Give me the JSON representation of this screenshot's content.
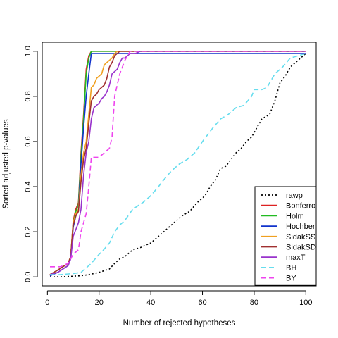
{
  "chart_data": {
    "type": "line",
    "title": "",
    "xlabel": "Number of rejected hypotheses",
    "ylabel": "Sorted adjusted p-values",
    "xlim": [
      -2,
      104
    ],
    "ylim": [
      -0.04,
      1.04
    ],
    "xticks": [
      0,
      20,
      40,
      60,
      80,
      100
    ],
    "yticks": [
      0.0,
      0.2,
      0.4,
      0.6,
      0.8,
      1.0
    ],
    "xtick_labels": [
      "0",
      "20",
      "40",
      "60",
      "80",
      "100"
    ],
    "ytick_labels": [
      "0.0",
      "0.2",
      "0.4",
      "0.6",
      "0.8",
      "1.0"
    ],
    "grid": false,
    "legend_position": "bottom-right",
    "series": [
      {
        "name": "rawp",
        "color": "#000000",
        "dash": "dotted",
        "x": [
          1,
          5,
          10,
          13,
          16,
          20,
          24,
          26,
          28,
          30,
          33,
          36,
          40,
          44,
          48,
          52,
          55,
          58,
          61,
          63,
          65,
          67,
          69,
          71,
          73,
          75,
          77,
          79,
          81,
          83,
          86,
          88,
          90,
          92,
          94,
          97,
          100
        ],
        "y": [
          0.0,
          0.0,
          0.003,
          0.005,
          0.01,
          0.02,
          0.035,
          0.06,
          0.08,
          0.09,
          0.12,
          0.13,
          0.15,
          0.19,
          0.23,
          0.27,
          0.29,
          0.33,
          0.36,
          0.4,
          0.43,
          0.48,
          0.49,
          0.52,
          0.55,
          0.57,
          0.6,
          0.62,
          0.66,
          0.7,
          0.72,
          0.78,
          0.86,
          0.89,
          0.93,
          0.96,
          0.99
        ]
      },
      {
        "name": "Bonferroni",
        "color": "#dd2222",
        "dash": "solid",
        "x": [
          1,
          4,
          8,
          9,
          10,
          11,
          12,
          13,
          14,
          15,
          16,
          17,
          18,
          100
        ],
        "y": [
          0.01,
          0.03,
          0.06,
          0.09,
          0.25,
          0.3,
          0.33,
          0.55,
          0.72,
          0.92,
          0.98,
          1.0,
          1.0,
          1.0
        ]
      },
      {
        "name": "Holm",
        "color": "#22bb22",
        "dash": "solid",
        "x": [
          1,
          4,
          8,
          9,
          10,
          11,
          12,
          13,
          14,
          15,
          16,
          17,
          18,
          100
        ],
        "y": [
          0.01,
          0.03,
          0.06,
          0.09,
          0.24,
          0.29,
          0.32,
          0.53,
          0.7,
          0.9,
          0.97,
          1.0,
          1.0,
          1.0
        ]
      },
      {
        "name": "Hochberg",
        "color": "#1133cc",
        "dash": "solid",
        "x": [
          1,
          4,
          8,
          9,
          10,
          11,
          12,
          13,
          14,
          15,
          16,
          17,
          18,
          100
        ],
        "y": [
          0.005,
          0.02,
          0.05,
          0.08,
          0.22,
          0.27,
          0.3,
          0.5,
          0.66,
          0.8,
          0.9,
          0.99,
          0.99,
          0.99
        ]
      },
      {
        "name": "SidakSS",
        "color": "#f0a020",
        "dash": "solid",
        "x": [
          1,
          4,
          8,
          9,
          10,
          11,
          12,
          13,
          14,
          15,
          16,
          17,
          18,
          19,
          20,
          21,
          22,
          23,
          24,
          25,
          26,
          27,
          28,
          100
        ],
        "y": [
          0.01,
          0.03,
          0.06,
          0.09,
          0.24,
          0.28,
          0.3,
          0.45,
          0.55,
          0.6,
          0.72,
          0.84,
          0.85,
          0.88,
          0.89,
          0.9,
          0.94,
          0.95,
          0.96,
          0.97,
          0.99,
          1.0,
          1.0,
          1.0
        ]
      },
      {
        "name": "SidakSD",
        "color": "#a03030",
        "dash": "solid",
        "x": [
          1,
          4,
          8,
          9,
          10,
          11,
          12,
          13,
          14,
          15,
          16,
          17,
          18,
          19,
          20,
          21,
          22,
          23,
          24,
          25,
          26,
          27,
          28,
          100
        ],
        "y": [
          0.01,
          0.03,
          0.06,
          0.09,
          0.23,
          0.27,
          0.29,
          0.42,
          0.52,
          0.57,
          0.68,
          0.78,
          0.8,
          0.81,
          0.83,
          0.84,
          0.85,
          0.88,
          0.93,
          0.95,
          0.98,
          0.99,
          1.0,
          1.0
        ]
      },
      {
        "name": "maxT",
        "color": "#9933cc",
        "dash": "solid",
        "x": [
          1,
          4,
          8,
          9,
          10,
          11,
          12,
          13,
          14,
          15,
          16,
          17,
          18,
          19,
          20,
          21,
          22,
          23,
          24,
          25,
          26,
          27,
          28,
          29,
          30,
          31,
          32,
          34,
          36,
          100
        ],
        "y": [
          0.01,
          0.02,
          0.05,
          0.08,
          0.18,
          0.21,
          0.24,
          0.3,
          0.45,
          0.55,
          0.6,
          0.7,
          0.75,
          0.76,
          0.77,
          0.79,
          0.8,
          0.82,
          0.85,
          0.9,
          0.91,
          0.92,
          0.95,
          0.97,
          0.97,
          0.98,
          0.99,
          0.99,
          1.0,
          1.0
        ]
      },
      {
        "name": "BH",
        "color": "#66ddee",
        "dash": "dashed",
        "x": [
          1,
          5,
          10,
          13,
          16,
          17,
          20,
          21,
          24,
          26,
          28,
          30,
          33,
          37,
          40,
          43,
          45,
          48,
          51,
          54,
          57,
          60,
          64,
          67,
          70,
          73,
          76,
          79,
          80,
          83,
          85,
          86,
          88,
          91,
          94,
          100
        ],
        "y": [
          0.01,
          0.01,
          0.015,
          0.02,
          0.05,
          0.06,
          0.1,
          0.11,
          0.15,
          0.2,
          0.23,
          0.25,
          0.3,
          0.33,
          0.36,
          0.4,
          0.43,
          0.47,
          0.5,
          0.52,
          0.55,
          0.6,
          0.66,
          0.7,
          0.72,
          0.75,
          0.76,
          0.8,
          0.83,
          0.83,
          0.84,
          0.86,
          0.9,
          0.93,
          0.97,
          0.99
        ]
      },
      {
        "name": "BY",
        "color": "#ee44ee",
        "dash": "dashed",
        "x": [
          1,
          5,
          8,
          10,
          12,
          13,
          15,
          16,
          17,
          18,
          20,
          22,
          24,
          25,
          26,
          27,
          28,
          30,
          32,
          100
        ],
        "y": [
          0.045,
          0.045,
          0.06,
          0.1,
          0.12,
          0.2,
          0.28,
          0.4,
          0.53,
          0.53,
          0.53,
          0.55,
          0.57,
          0.62,
          0.8,
          0.85,
          0.9,
          0.96,
          1.0,
          1.0
        ]
      }
    ],
    "legend_labels": [
      "rawp",
      "Bonferro",
      "Holm",
      "Hochber",
      "SidakSS",
      "SidakSD",
      "maxT",
      "BH",
      "BY"
    ]
  }
}
